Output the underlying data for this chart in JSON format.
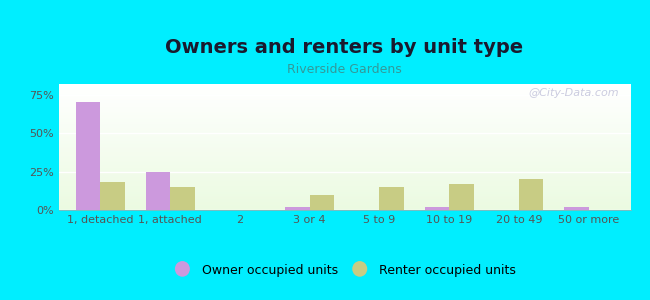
{
  "title": "Owners and renters by unit type",
  "subtitle": "Riverside Gardens",
  "categories": [
    "1, detached",
    "1, attached",
    "2",
    "3 or 4",
    "5 to 9",
    "10 to 19",
    "20 to 49",
    "50 or more"
  ],
  "owner_values": [
    70,
    25,
    0,
    2,
    0,
    2,
    0,
    2
  ],
  "renter_values": [
    18,
    15,
    0,
    10,
    15,
    17,
    20,
    0
  ],
  "owner_color": "#cc99dd",
  "renter_color": "#c8cc84",
  "background_outer": "#00eeff",
  "yticks": [
    0,
    25,
    50,
    75
  ],
  "ylim": [
    0,
    82
  ],
  "bar_width": 0.35,
  "title_fontsize": 14,
  "subtitle_fontsize": 9,
  "title_color": "#1a1a2e",
  "subtitle_color": "#339999",
  "legend_labels": [
    "Owner occupied units",
    "Renter occupied units"
  ],
  "watermark": "@City-Data.com",
  "tick_fontsize": 8,
  "tick_color": "#555555"
}
